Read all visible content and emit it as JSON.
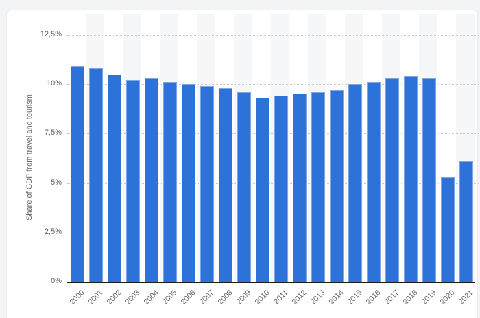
{
  "page": {
    "background_color": "#f3f4f6",
    "card_background_color": "#ffffff"
  },
  "chart_data": {
    "type": "bar",
    "title": "",
    "xlabel": "",
    "ylabel": "Share of GDP from travel and tourism",
    "categories": [
      "2000",
      "2001",
      "2002",
      "2003",
      "2004",
      "2005",
      "2006",
      "2007",
      "2008",
      "2009",
      "2010",
      "2011",
      "2012",
      "2013",
      "2014",
      "2015",
      "2016",
      "2017",
      "2018",
      "2019",
      "2020",
      "2021"
    ],
    "values": [
      10.9,
      10.8,
      10.5,
      10.2,
      10.3,
      10.1,
      10.0,
      9.9,
      9.8,
      9.6,
      9.3,
      9.4,
      9.5,
      9.6,
      9.7,
      10.0,
      10.1,
      10.3,
      10.4,
      10.3,
      5.3,
      6.1
    ],
    "unit": "%",
    "ylim": [
      0,
      12.5
    ],
    "y_ticks": [
      {
        "value": 0,
        "label": "0%"
      },
      {
        "value": 2.5,
        "label": "2,5%"
      },
      {
        "value": 5,
        "label": "5%"
      },
      {
        "value": 7.5,
        "label": "7,5%"
      },
      {
        "value": 10,
        "label": "10%"
      },
      {
        "value": 12.5,
        "label": "12,5%"
      }
    ],
    "grid": "horizontal-dotted",
    "legend": "none",
    "alternating_column_bands": true,
    "colors": {
      "bar": "#2d72d9",
      "bar_border": "#7fa6e3",
      "band": "#f6f7f8",
      "grid": "#c9c9c9",
      "axis": "#1d1d1d",
      "text": "#666666"
    }
  }
}
